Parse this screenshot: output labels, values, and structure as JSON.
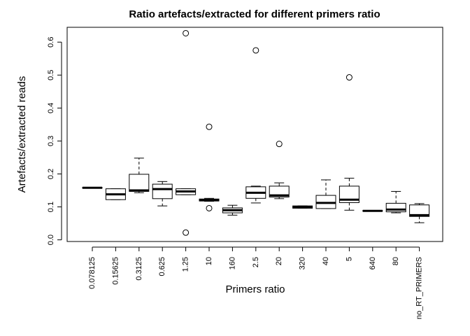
{
  "chart_data": {
    "type": "boxplot",
    "title": "Ratio artefacts/extracted for different primers ratio",
    "xlabel": "Primers ratio",
    "ylabel": "Artefacts/extracted reads",
    "ylim": [
      -0.005,
      0.645
    ],
    "yticks": [
      "0.0",
      "0.1",
      "0.2",
      "0.3",
      "0.4",
      "0.5",
      "0.6"
    ],
    "yticks_values": [
      0.0,
      0.1,
      0.2,
      0.3,
      0.4,
      0.5,
      0.6
    ],
    "grid": false,
    "legend": "none",
    "categories": [
      "0.078125",
      "0.15625",
      "0.3125",
      "0.625",
      "1.25",
      "10",
      "160",
      "2.5",
      "20",
      "320",
      "40",
      "5",
      "640",
      "80",
      "no_RT_PRIMERS"
    ],
    "boxes": [
      {
        "whisker_low": 0.157,
        "q1": 0.157,
        "median": 0.158,
        "q3": 0.159,
        "whisker_high": 0.159,
        "outliers": []
      },
      {
        "whisker_low": 0.122,
        "q1": 0.122,
        "median": 0.138,
        "q3": 0.155,
        "whisker_high": 0.155,
        "outliers": []
      },
      {
        "whisker_low": 0.143,
        "q1": 0.147,
        "median": 0.15,
        "q3": 0.199,
        "whisker_high": 0.248,
        "outliers": []
      },
      {
        "whisker_low": 0.103,
        "q1": 0.125,
        "median": 0.154,
        "q3": 0.169,
        "whisker_high": 0.177,
        "outliers": []
      },
      {
        "whisker_low": 0.137,
        "q1": 0.137,
        "median": 0.147,
        "q3": 0.155,
        "whisker_high": 0.155,
        "outliers": [
          0.627,
          0.022
        ]
      },
      {
        "whisker_low": 0.117,
        "q1": 0.118,
        "median": 0.12,
        "q3": 0.124,
        "whisker_high": 0.126,
        "outliers": [
          0.343,
          0.096
        ]
      },
      {
        "whisker_low": 0.075,
        "q1": 0.082,
        "median": 0.09,
        "q3": 0.097,
        "whisker_high": 0.105,
        "outliers": []
      },
      {
        "whisker_low": 0.112,
        "q1": 0.126,
        "median": 0.143,
        "q3": 0.161,
        "whisker_high": 0.163,
        "outliers": [
          0.575
        ]
      },
      {
        "whisker_low": 0.125,
        "q1": 0.13,
        "median": 0.135,
        "q3": 0.163,
        "whisker_high": 0.173,
        "outliers": [
          0.291
        ]
      },
      {
        "whisker_low": 0.096,
        "q1": 0.096,
        "median": 0.1,
        "q3": 0.103,
        "whisker_high": 0.103,
        "outliers": []
      },
      {
        "whisker_low": 0.095,
        "q1": 0.095,
        "median": 0.112,
        "q3": 0.135,
        "whisker_high": 0.182,
        "outliers": []
      },
      {
        "whisker_low": 0.09,
        "q1": 0.113,
        "median": 0.122,
        "q3": 0.163,
        "whisker_high": 0.187,
        "outliers": [
          0.493
        ]
      },
      {
        "whisker_low": 0.087,
        "q1": 0.087,
        "median": 0.088,
        "q3": 0.089,
        "whisker_high": 0.089,
        "outliers": []
      },
      {
        "whisker_low": 0.082,
        "q1": 0.085,
        "median": 0.092,
        "q3": 0.111,
        "whisker_high": 0.147,
        "outliers": []
      },
      {
        "whisker_low": 0.052,
        "q1": 0.071,
        "median": 0.075,
        "q3": 0.106,
        "whisker_high": 0.11,
        "outliers": []
      }
    ]
  }
}
